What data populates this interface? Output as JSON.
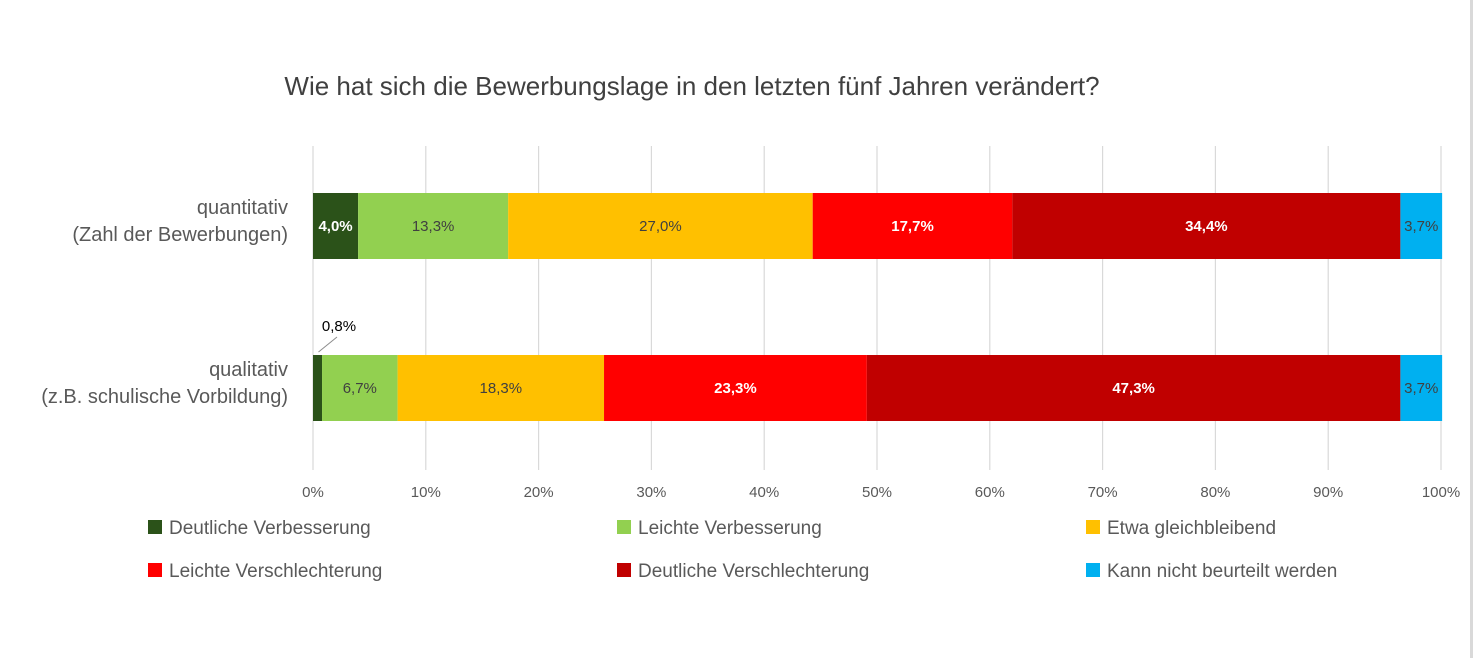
{
  "chart_data": {
    "type": "bar",
    "orientation": "horizontal",
    "stacked": true,
    "title": "Wie hat sich die Bewerbungslage in den letzten fünf Jahren verändert?",
    "categories": [
      [
        "quantitativ",
        "(Zahl der Bewerbungen)"
      ],
      [
        "qualitativ",
        "(z.B. schulische Vorbildung)"
      ]
    ],
    "series": [
      {
        "name": "Deutliche Verbesserung",
        "color": "#2b5219",
        "values": [
          4.0,
          0.8
        ],
        "labels": [
          "4,0%",
          "0,8%"
        ],
        "label_color": "#ffffff"
      },
      {
        "name": "Leichte Verbesserung",
        "color": "#92d050",
        "values": [
          13.3,
          6.7
        ],
        "labels": [
          "13,3%",
          "6,7%"
        ],
        "label_color": "#404040"
      },
      {
        "name": "Etwa gleichbleibend",
        "color": "#ffc000",
        "values": [
          27.0,
          18.3
        ],
        "labels": [
          "27,0%",
          "18,3%"
        ],
        "label_color": "#404040"
      },
      {
        "name": "Leichte Verschlechterung",
        "color": "#ff0000",
        "values": [
          17.7,
          23.3
        ],
        "labels": [
          "17,7%",
          "23,3%"
        ],
        "label_color": "#ffffff"
      },
      {
        "name": "Deutliche Verschlechterung",
        "color": "#c00000",
        "values": [
          34.4,
          47.3
        ],
        "labels": [
          "34,4%",
          "47,3%"
        ],
        "label_color": "#ffffff"
      },
      {
        "name": "Kann nicht beurteilt werden",
        "color": "#00b0f0",
        "values": [
          3.7,
          3.7
        ],
        "labels": [
          "3,7%",
          "3,7%"
        ],
        "label_color": "#404040"
      }
    ],
    "xlim": [
      0,
      100
    ],
    "xticks": [
      "0%",
      "10%",
      "20%",
      "30%",
      "40%",
      "50%",
      "60%",
      "70%",
      "80%",
      "90%",
      "100%"
    ],
    "grid": true,
    "legend_position": "bottom",
    "callout": {
      "series": 0,
      "category": 1,
      "label": "0,8%"
    }
  }
}
